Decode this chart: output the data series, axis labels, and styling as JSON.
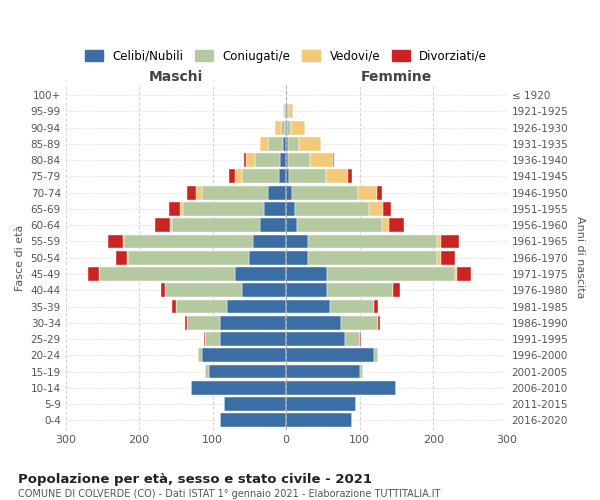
{
  "age_groups": [
    "0-4",
    "5-9",
    "10-14",
    "15-19",
    "20-24",
    "25-29",
    "30-34",
    "35-39",
    "40-44",
    "45-49",
    "50-54",
    "55-59",
    "60-64",
    "65-69",
    "70-74",
    "75-79",
    "80-84",
    "85-89",
    "90-94",
    "95-99",
    "100+"
  ],
  "birth_years": [
    "2016-2020",
    "2011-2015",
    "2006-2010",
    "2001-2005",
    "1996-2000",
    "1991-1995",
    "1986-1990",
    "1981-1985",
    "1976-1980",
    "1971-1975",
    "1966-1970",
    "1961-1965",
    "1956-1960",
    "1951-1955",
    "1946-1950",
    "1941-1945",
    "1936-1940",
    "1931-1935",
    "1926-1930",
    "1921-1925",
    "≤ 1920"
  ],
  "colors": {
    "celibe": "#3a6ea5",
    "coniugato": "#b5c9a0",
    "vedovo": "#f5c97a",
    "divorziato": "#cc2222"
  },
  "maschi": {
    "celibe": [
      90,
      85,
      130,
      105,
      115,
      90,
      90,
      80,
      60,
      70,
      50,
      45,
      35,
      30,
      25,
      10,
      8,
      5,
      2,
      1,
      0
    ],
    "coniugato": [
      0,
      0,
      0,
      5,
      5,
      20,
      45,
      70,
      105,
      185,
      165,
      175,
      120,
      110,
      90,
      50,
      35,
      20,
      5,
      2,
      0
    ],
    "vedovo": [
      0,
      0,
      0,
      0,
      0,
      0,
      0,
      0,
      0,
      0,
      2,
      2,
      3,
      5,
      8,
      10,
      12,
      10,
      8,
      2,
      0
    ],
    "divorziato": [
      0,
      0,
      0,
      0,
      0,
      2,
      2,
      5,
      5,
      15,
      15,
      20,
      20,
      15,
      12,
      8,
      2,
      0,
      0,
      0,
      0
    ]
  },
  "femmine": {
    "celibe": [
      90,
      95,
      150,
      100,
      120,
      80,
      75,
      60,
      55,
      55,
      30,
      30,
      15,
      12,
      8,
      4,
      3,
      2,
      1,
      1,
      0
    ],
    "coniugato": [
      0,
      0,
      0,
      5,
      5,
      20,
      50,
      60,
      90,
      175,
      175,
      175,
      115,
      100,
      90,
      50,
      30,
      15,
      5,
      3,
      0
    ],
    "vedovo": [
      0,
      0,
      0,
      0,
      0,
      0,
      0,
      0,
      0,
      2,
      5,
      5,
      10,
      20,
      25,
      30,
      30,
      30,
      20,
      5,
      0
    ],
    "divorziato": [
      0,
      0,
      0,
      0,
      0,
      2,
      2,
      5,
      10,
      20,
      20,
      25,
      20,
      10,
      8,
      5,
      2,
      0,
      0,
      0,
      0
    ]
  },
  "title": "Popolazione per età, sesso e stato civile - 2021",
  "subtitle": "COMUNE DI COLVERDE (CO) - Dati ISTAT 1° gennaio 2021 - Elaborazione TUTTITALIA.IT",
  "xlabel_left": "Maschi",
  "xlabel_right": "Femmine",
  "ylabel_left": "Fasce di età",
  "ylabel_right": "Anni di nascita",
  "xlim": 300,
  "legend_labels": [
    "Celibi/Nubili",
    "Coniugati/e",
    "Vedovi/e",
    "Divorziati/e"
  ]
}
